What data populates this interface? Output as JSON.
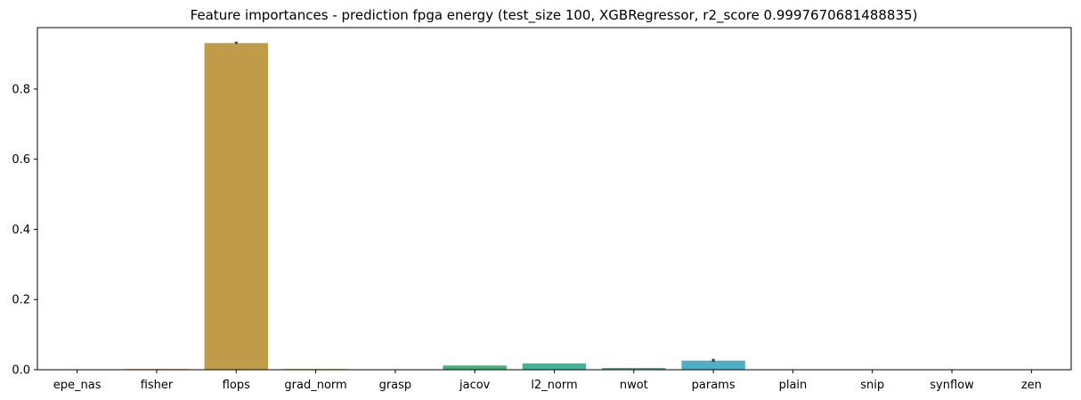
{
  "chart_data": {
    "type": "bar",
    "title": "Feature importances - prediction fpga energy (test_size 100, XGBRegressor, r2_score 0.9997670681488835)",
    "xlabel": "",
    "ylabel": "",
    "categories": [
      "epe_nas",
      "fisher",
      "flops",
      "grad_norm",
      "grasp",
      "jacov",
      "l2_norm",
      "nwot",
      "params",
      "plain",
      "snip",
      "synflow",
      "zen"
    ],
    "values": [
      0.0,
      0.002,
      0.931,
      0.002,
      0.0,
      0.012,
      0.018,
      0.005,
      0.026,
      0.0,
      0.0,
      0.0,
      0.0
    ],
    "error_bars": [
      null,
      null,
      [
        0.929,
        0.935
      ],
      null,
      null,
      null,
      null,
      null,
      [
        0.022,
        0.031
      ],
      null,
      null,
      null,
      null
    ],
    "colors": [
      "#e1816a",
      "#d9803e",
      "#c09b4a",
      "#9fa046",
      "#7fae47",
      "#46b07a",
      "#48b29a",
      "#49ada9",
      "#4eb0c8",
      "#5fa3e3",
      "#988be6",
      "#c980e0",
      "#e47fc8"
    ],
    "ylim": [
      0,
      0.975
    ],
    "yticks": [
      0.0,
      0.2,
      0.4,
      0.6,
      0.8
    ],
    "ytick_labels": [
      "0.0",
      "0.2",
      "0.4",
      "0.6",
      "0.8"
    ],
    "grid": false,
    "legend": "none"
  }
}
